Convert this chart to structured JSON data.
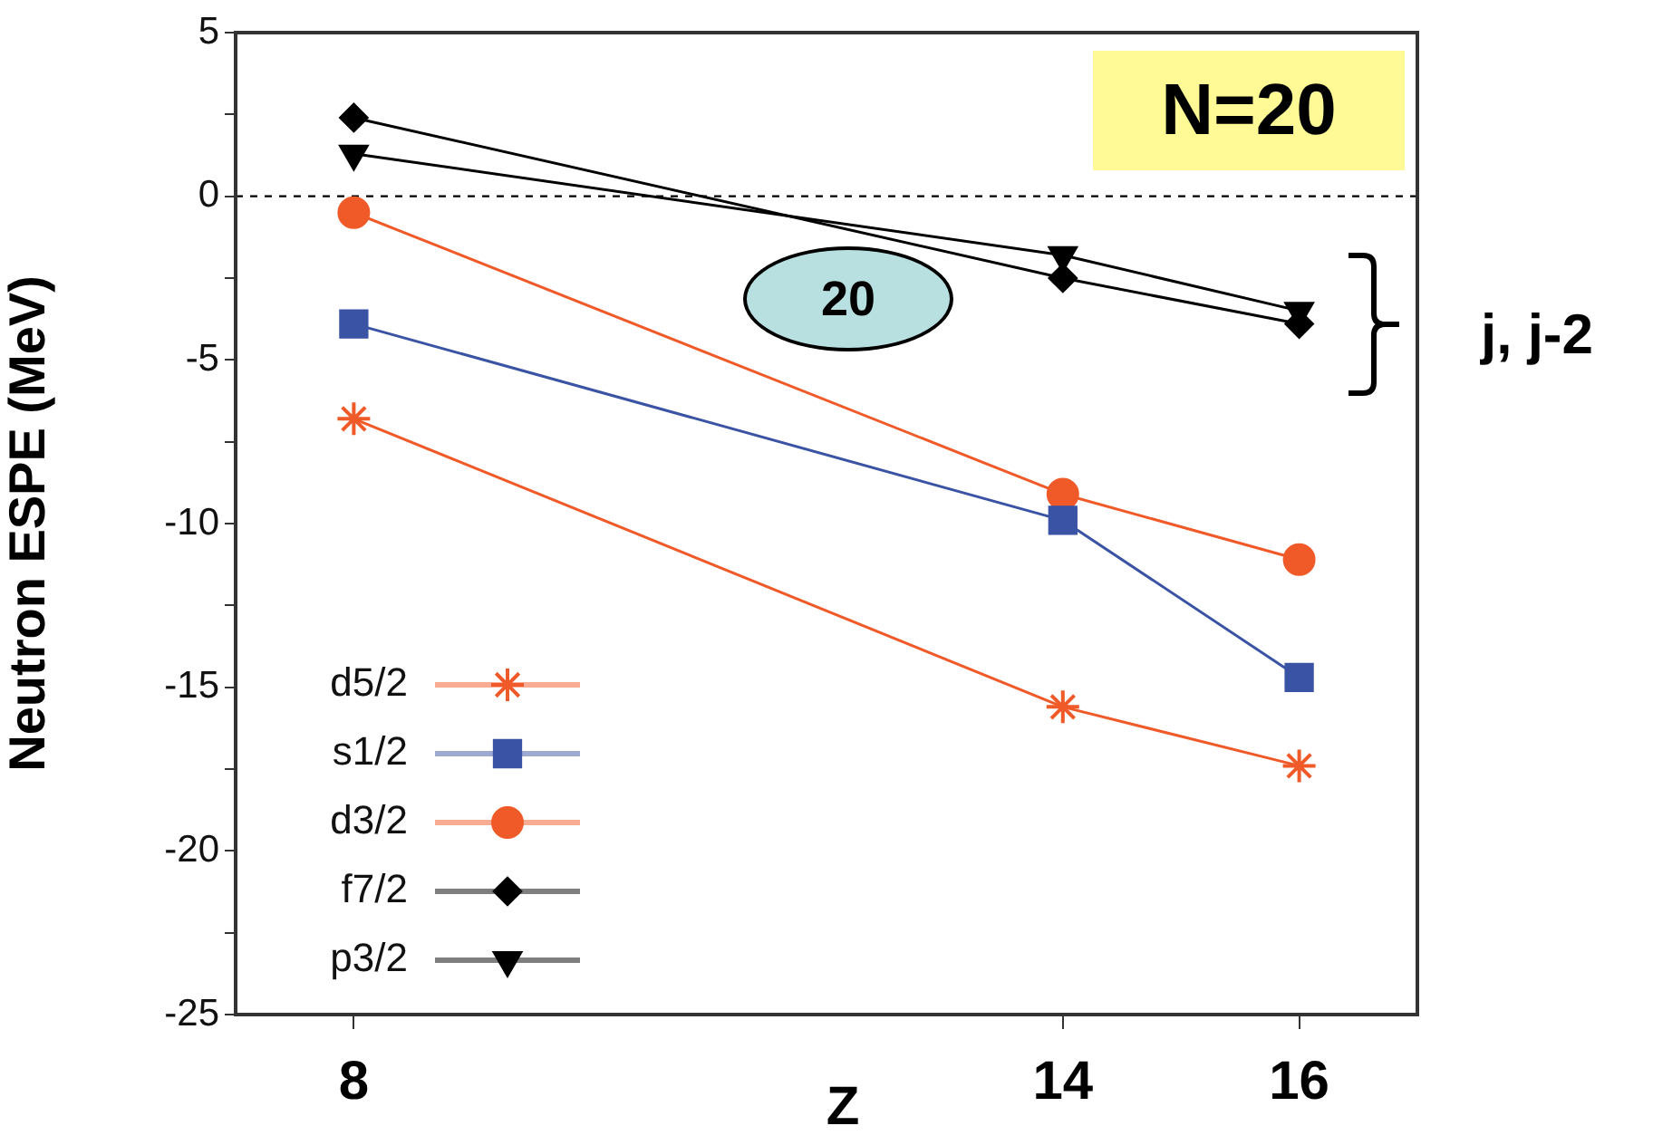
{
  "chart_data": {
    "type": "line",
    "ylabel": "Neutron ESPE (MeV)",
    "xlabel": "Z",
    "x": [
      8,
      14,
      16
    ],
    "xlim": [
      7,
      17
    ],
    "xticks": [
      8,
      14,
      16
    ],
    "ylim": [
      -25,
      5
    ],
    "yticks": [
      -25,
      {
        "value": -22.5,
        "label": null
      },
      -20,
      {
        "value": -17.5,
        "label": null
      },
      -15,
      {
        "value": -12.5,
        "label": null
      },
      -10,
      {
        "value": -7.5,
        "label": null
      },
      -5,
      {
        "value": -2.5,
        "label": null
      },
      0,
      {
        "value": 2.5,
        "label": null
      },
      5
    ],
    "series": [
      {
        "name": "d5/2",
        "color": "#f05a28",
        "marker": "cross",
        "values": [
          -6.8,
          -15.6,
          -17.4
        ]
      },
      {
        "name": "s1/2",
        "color": "#3a53a4",
        "marker": "square",
        "values": [
          -3.9,
          -9.9,
          -14.7
        ]
      },
      {
        "name": "d3/2",
        "color": "#f05a28",
        "marker": "circle",
        "values": [
          -0.5,
          -9.1,
          -11.1
        ]
      },
      {
        "name": "f7/2",
        "color": "#000000",
        "marker": "diamond",
        "values": [
          2.4,
          -2.5,
          -3.9
        ]
      },
      {
        "name": "p3/2",
        "color": "#000000",
        "marker": "triangle",
        "values": [
          1.3,
          -1.8,
          -3.5
        ]
      }
    ],
    "ref_lines": [
      {
        "axis": "y",
        "value": 0,
        "color": "#000000",
        "line_style": "dashed"
      }
    ],
    "legend": "bottom left",
    "grid": false,
    "annotations": [
      "N=20",
      "20",
      "j, j-2"
    ]
  }
}
